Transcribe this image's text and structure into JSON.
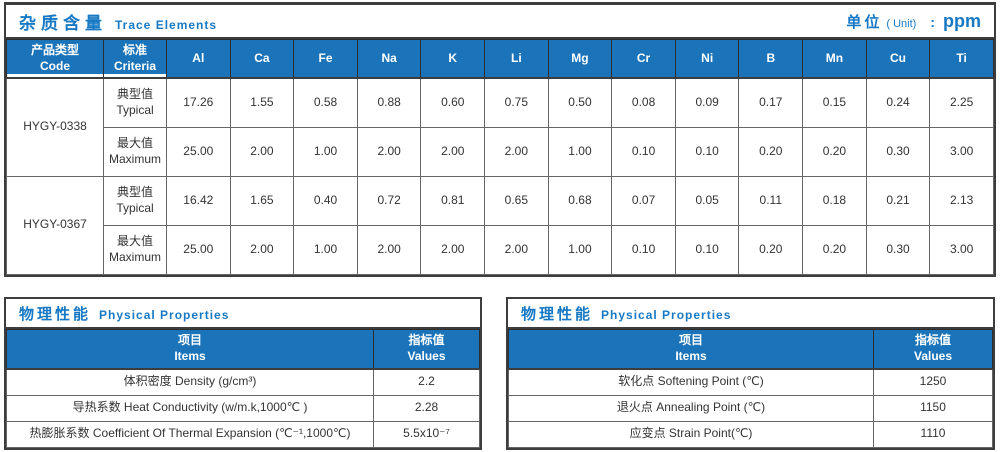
{
  "colors": {
    "accent_blue": "#1779c4",
    "table_header_bg": "#1b74ba",
    "border_dark": "#3d3d3d",
    "border_inner": "#666666",
    "cell_text": "#333333"
  },
  "trace": {
    "title_zh": "杂质含量",
    "title_en": "Trace Elements",
    "unit_zh": "单位",
    "unit_paren": "( Unit)",
    "unit_colon": ":",
    "unit_value": "ppm",
    "col_code_zh": "产品类型",
    "col_code_en": "Code",
    "col_criteria_zh": "标准",
    "col_criteria_en": "Criteria",
    "elements": [
      "Al",
      "Ca",
      "Fe",
      "Na",
      "K",
      "Li",
      "Mg",
      "Cr",
      "Ni",
      "B",
      "Mn",
      "Cu",
      "Ti"
    ],
    "products": [
      {
        "code": "HYGY-0338",
        "rows": [
          {
            "criteria_zh": "典型值",
            "criteria_en": "Typical",
            "values": [
              "17.26",
              "1.55",
              "0.58",
              "0.88",
              "0.60",
              "0.75",
              "0.50",
              "0.08",
              "0.09",
              "0.17",
              "0.15",
              "0.24",
              "2.25"
            ]
          },
          {
            "criteria_zh": "最大值",
            "criteria_en": "Maximum",
            "values": [
              "25.00",
              "2.00",
              "1.00",
              "2.00",
              "2.00",
              "2.00",
              "1.00",
              "0.10",
              "0.10",
              "0.20",
              "0.20",
              "0.30",
              "3.00"
            ]
          }
        ]
      },
      {
        "code": "HYGY-0367",
        "rows": [
          {
            "criteria_zh": "典型值",
            "criteria_en": "Typical",
            "values": [
              "16.42",
              "1.65",
              "0.40",
              "0.72",
              "0.81",
              "0.65",
              "0.68",
              "0.07",
              "0.05",
              "0.11",
              "0.18",
              "0.21",
              "2.13"
            ]
          },
          {
            "criteria_zh": "最大值",
            "criteria_en": "Maximum",
            "values": [
              "25.00",
              "2.00",
              "1.00",
              "2.00",
              "2.00",
              "2.00",
              "1.00",
              "0.10",
              "0.10",
              "0.20",
              "0.20",
              "0.30",
              "3.00"
            ]
          }
        ]
      }
    ]
  },
  "physical": {
    "title_zh": "物理性能",
    "title_en": "Physical Properties",
    "header": {
      "items_zh": "项目",
      "items_en": "Items",
      "values_zh": "指标值",
      "values_en": "Values"
    },
    "left_rows": [
      {
        "item": "体积密度 Density (g/cm³)",
        "value": "2.2"
      },
      {
        "item": "导热系数 Heat Conductivity (w/m.k,1000℃ )",
        "value": "2.28"
      },
      {
        "item": "热膨胀系数 Coefficient Of Thermal Expansion (℃⁻¹,1000℃)",
        "value": "5.5x10⁻⁷"
      }
    ],
    "right_rows": [
      {
        "item": "软化点 Softening Point (℃)",
        "value": "1250"
      },
      {
        "item": "退火点 Annealing Point (℃)",
        "value": "1150"
      },
      {
        "item": "应变点 Strain Point(℃)",
        "value": "1110"
      }
    ]
  }
}
